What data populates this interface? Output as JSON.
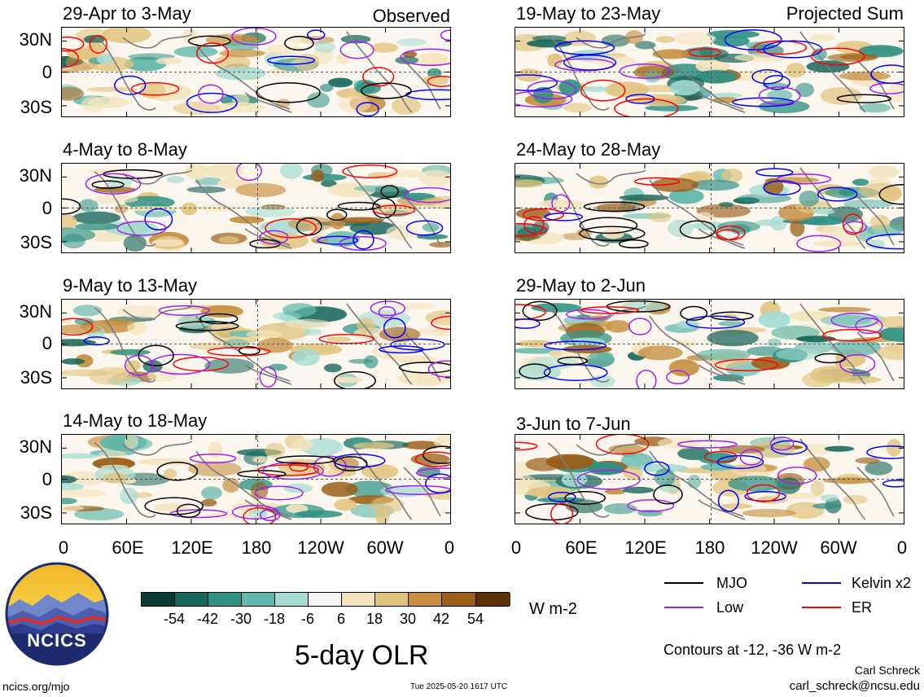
{
  "observed_label": "Observed",
  "projected_label": "Projected Sum",
  "panels_left": [
    {
      "title": "29-Apr to 3-May"
    },
    {
      "title": "4-May to 8-May"
    },
    {
      "title": "9-May to 13-May"
    },
    {
      "title": "14-May to 18-May"
    }
  ],
  "panels_right": [
    {
      "title": "19-May to 23-May"
    },
    {
      "title": "24-May to 28-May"
    },
    {
      "title": "29-May to 2-Jun"
    },
    {
      "title": "3-Jun to 7-Jun"
    }
  ],
  "lat_labels": [
    "30N",
    "0",
    "30S"
  ],
  "lon_labels": [
    "0",
    "60E",
    "120E",
    "180",
    "120W",
    "60W",
    "0"
  ],
  "colorbar": {
    "ticks": [
      "-54",
      "-42",
      "-30",
      "-18",
      "-6",
      "6",
      "18",
      "30",
      "42",
      "54"
    ],
    "colors": [
      "#0b3b33",
      "#17665a",
      "#2f9184",
      "#62b8aa",
      "#a6dcd2",
      "#f5f5f5",
      "#f4e4bd",
      "#e2c47f",
      "#c58f3f",
      "#9a5d17",
      "#5b3206"
    ],
    "units": "W m-2"
  },
  "main_title": "5-day OLR",
  "legend": [
    {
      "label": "MJO",
      "color": "#000000"
    },
    {
      "label": "Kelvin x2",
      "color": "#0000ff"
    },
    {
      "label": "Low",
      "color": "#a020f0"
    },
    {
      "label": "ER",
      "color": "#ff0000"
    }
  ],
  "contour_note": "Contours at -12, -36 W m-2",
  "author": "Carl Schreck",
  "email": "carl_schreck@ncsu.edu",
  "site": "ncics.org/mjo",
  "timestamp": "Tue 2025-05-20 1617 UTC",
  "logo_text": "NCICS"
}
